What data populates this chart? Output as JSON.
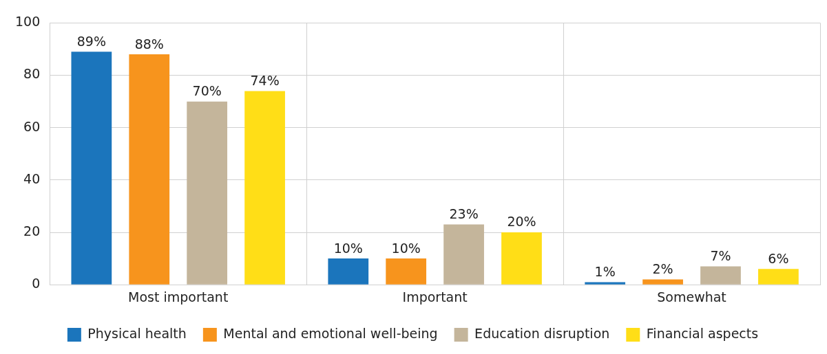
{
  "chart_data": {
    "type": "bar",
    "categories": [
      "Most important",
      "Important",
      "Somewhat"
    ],
    "series": [
      {
        "name": "Physical health",
        "color": "#1b75bc",
        "values": [
          89,
          10,
          1
        ],
        "value_labels": [
          "89%",
          "10%",
          "1%"
        ]
      },
      {
        "name": "Mental and emotional well-being",
        "color": "#f7941d",
        "values": [
          88,
          10,
          2
        ],
        "value_labels": [
          "88%",
          "10%",
          "2%"
        ]
      },
      {
        "name": "Education disruption",
        "color": "#c4b59b",
        "values": [
          70,
          23,
          7
        ],
        "value_labels": [
          "70%",
          "23%",
          "7%"
        ]
      },
      {
        "name": "Financial aspects",
        "color": "#ffde17",
        "values": [
          74,
          20,
          6
        ],
        "value_labels": [
          "74%",
          "20%",
          "6%"
        ]
      }
    ],
    "ylim": [
      0,
      100
    ],
    "yticks": [
      0,
      20,
      40,
      60,
      80,
      100
    ],
    "grid": true,
    "legend": "bottom"
  }
}
